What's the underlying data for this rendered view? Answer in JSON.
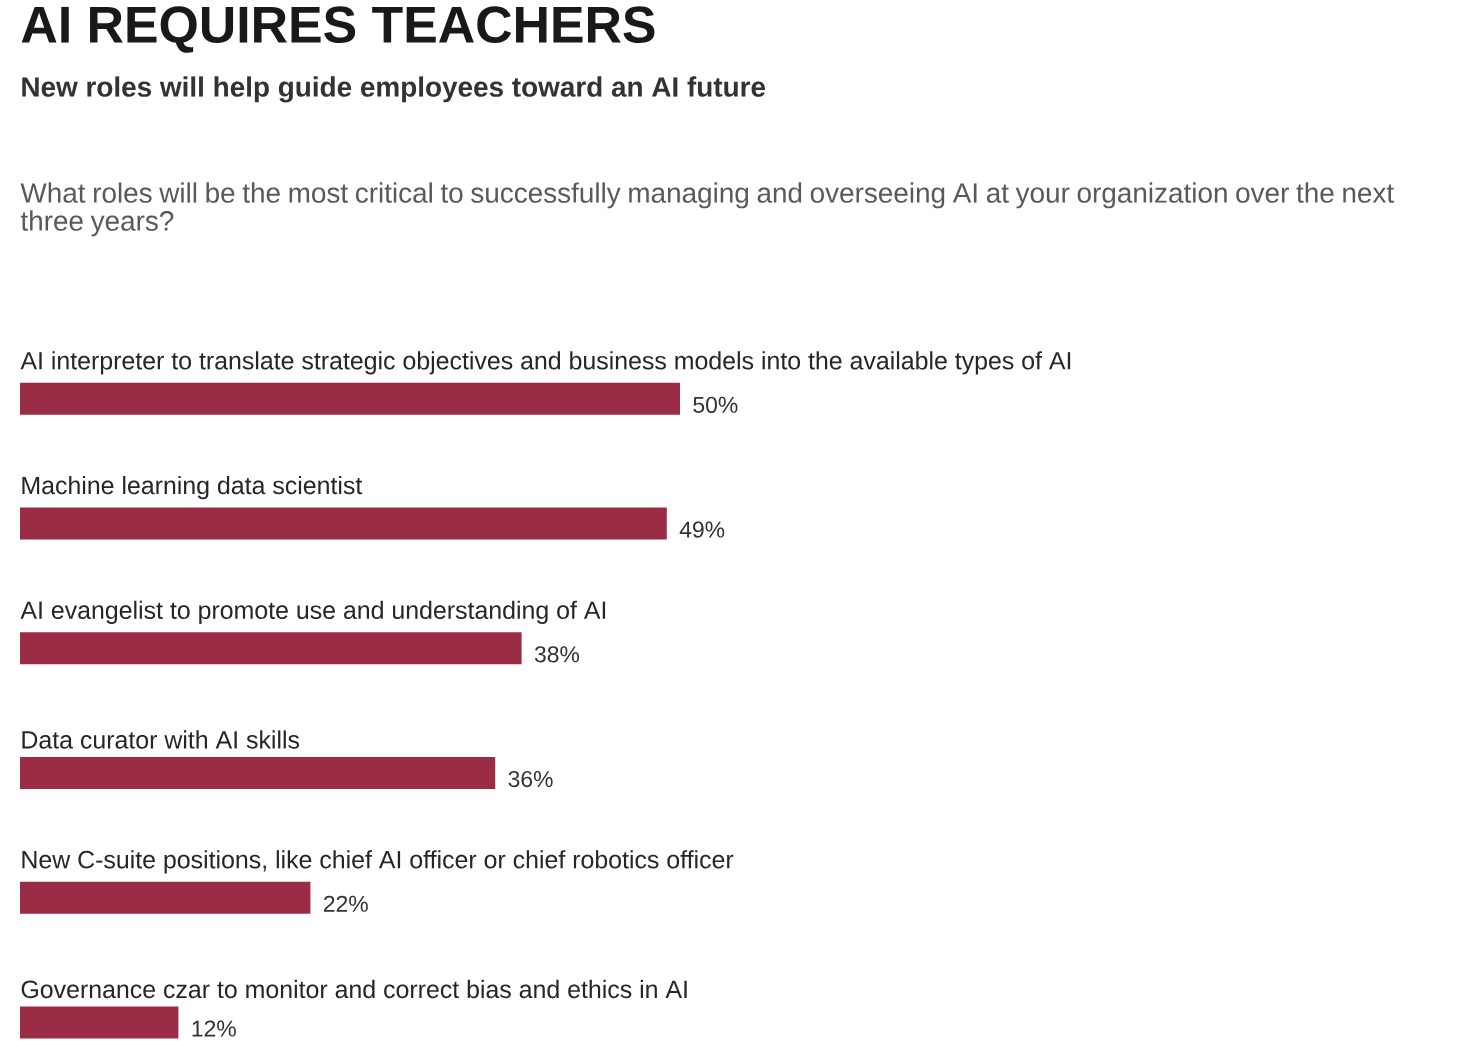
{
  "chart_data": {
    "type": "bar",
    "orientation": "horizontal",
    "title": "AI REQUIRES TEACHERS",
    "subtitle": "New roles will help guide employees toward an AI future",
    "annotations": [
      "What roles will be the most critical to successfully managing and overseeing AI at your organization over the next three years?"
    ],
    "categories": [
      "AI interpreter to translate strategic objectives and business models into the available types of AI",
      "Machine learning data scientist",
      "AI evangelist to promote use and understanding of AI",
      "Data curator with AI skills",
      "New C-suite positions, like chief AI officer or chief robotics officer",
      "Governance czar to monitor and correct bias and ethics in AI"
    ],
    "values": [
      50,
      49,
      38,
      36,
      22,
      12
    ],
    "value_labels": [
      "50%",
      "49%",
      "38%",
      "36%",
      "22%",
      "12%"
    ],
    "color": "#9b2c45"
  }
}
